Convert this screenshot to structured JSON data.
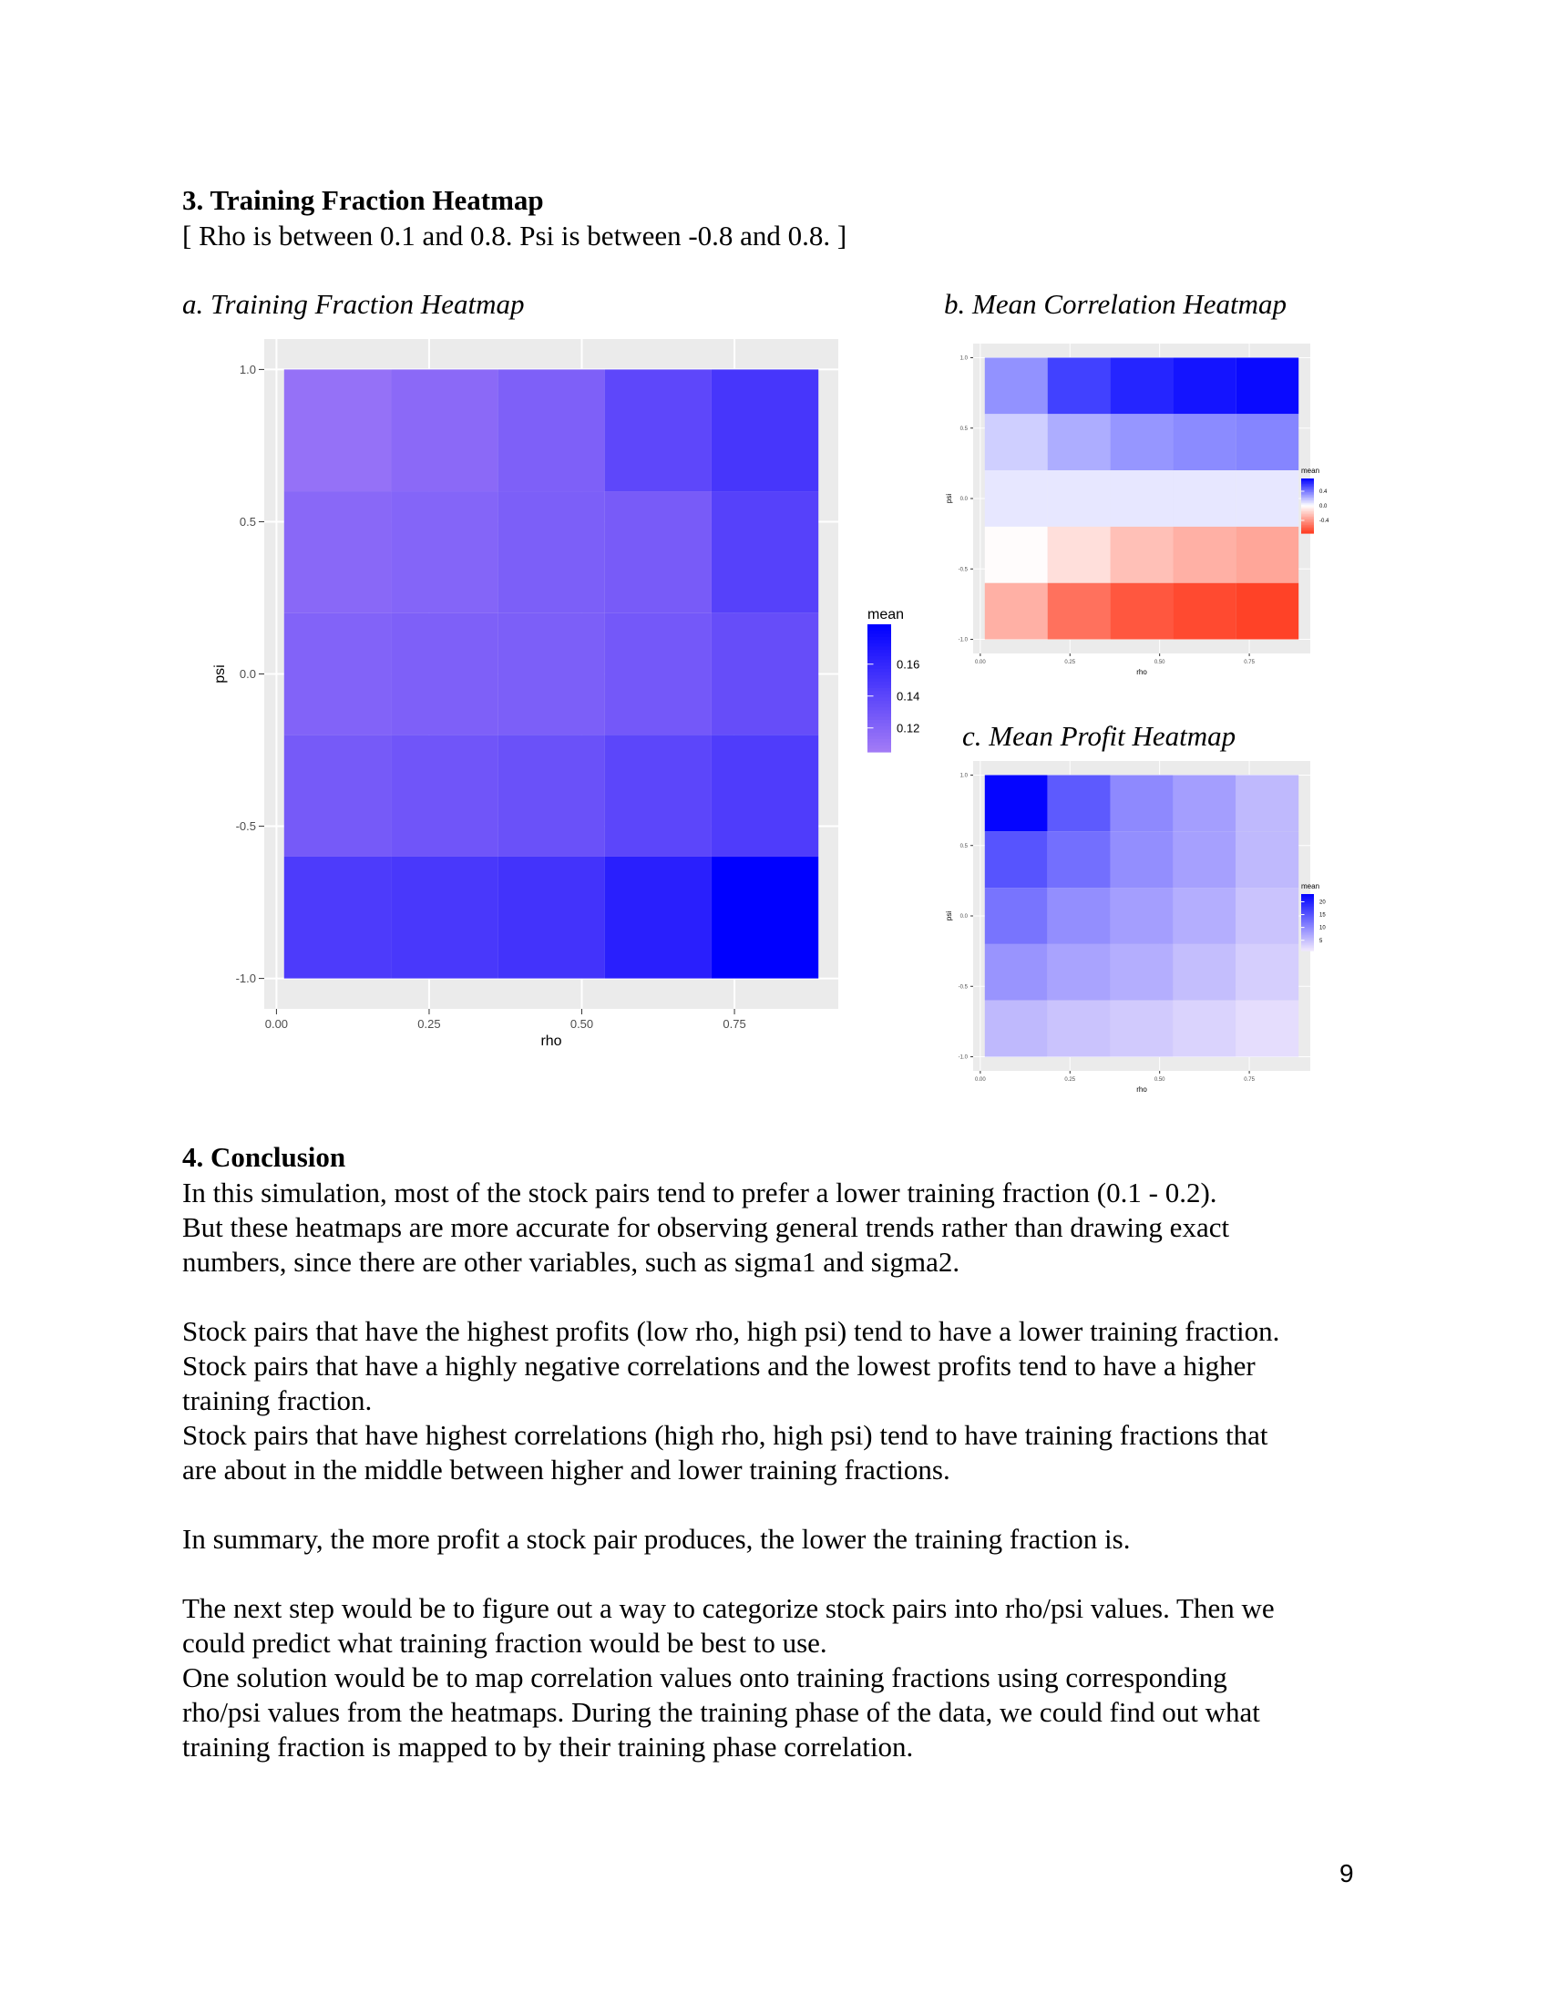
{
  "section3": {
    "heading": "3. Training Fraction Heatmap",
    "subtitle": "[ Rho is between 0.1 and 0.8. Psi is between -0.8 and 0.8. ]"
  },
  "captions": {
    "a": "a. Training Fraction Heatmap",
    "b": "b. Mean Correlation Heatmap",
    "c": "c. Mean Profit Heatmap"
  },
  "chart_data": [
    {
      "id": "a",
      "type": "heatmap",
      "xlabel": "rho",
      "ylabel": "psi",
      "x_ticks": [
        "0.00",
        "0.25",
        "0.50",
        "0.75"
      ],
      "y_ticks": [
        "1.0",
        "0.5",
        "0.0",
        "-0.5",
        "-1.0"
      ],
      "x_centers": [
        0.1,
        0.275,
        0.45,
        0.625,
        0.8
      ],
      "y_centers": [
        0.8,
        0.4,
        0.0,
        -0.4,
        -0.8
      ],
      "x_range": [
        -0.02,
        0.92
      ],
      "y_range": [
        -1.1,
        1.1
      ],
      "legend_title": "mean",
      "legend_ticks": [
        "0.16",
        "0.14",
        "0.12"
      ],
      "legend_values": [
        0.16,
        0.14,
        0.12
      ],
      "legend_range": [
        0.105,
        0.185
      ],
      "low_color": "#a37cf6",
      "high_color": "#0000ff",
      "values": [
        [
          0.112,
          0.117,
          0.123,
          0.139,
          0.15
        ],
        [
          0.118,
          0.12,
          0.124,
          0.126,
          0.143
        ],
        [
          0.121,
          0.123,
          0.124,
          0.128,
          0.135
        ],
        [
          0.127,
          0.13,
          0.133,
          0.14,
          0.146
        ],
        [
          0.147,
          0.149,
          0.152,
          0.165,
          0.185
        ]
      ]
    },
    {
      "id": "b",
      "type": "heatmap",
      "xlabel": "rho",
      "ylabel": "psi",
      "x_ticks": [
        "0.00",
        "0.25",
        "0.50",
        "0.75"
      ],
      "y_ticks": [
        "1.0",
        "0.5",
        "0.0",
        "-0.5",
        "-1.0"
      ],
      "x_centers": [
        0.1,
        0.275,
        0.45,
        0.625,
        0.8
      ],
      "y_centers": [
        0.8,
        0.4,
        0.0,
        -0.4,
        -0.8
      ],
      "x_range": [
        -0.02,
        0.92
      ],
      "y_range": [
        -1.1,
        1.1
      ],
      "legend_title": "mean",
      "legend_ticks": [
        "0.4",
        "0.0",
        "-0.4"
      ],
      "legend_values": [
        0.4,
        0.0,
        -0.4
      ],
      "legend_range": [
        -0.75,
        0.75
      ],
      "colors": {
        "low": "#ff3a1e",
        "mid": "#ffffff",
        "high": "#0000ff"
      },
      "values": [
        [
          0.32,
          0.56,
          0.64,
          0.69,
          0.72
        ],
        [
          0.14,
          0.24,
          0.31,
          0.34,
          0.36
        ],
        [
          0.07,
          0.07,
          0.07,
          0.07,
          0.07
        ],
        [
          -0.01,
          -0.12,
          -0.24,
          -0.3,
          -0.34
        ],
        [
          -0.3,
          -0.54,
          -0.64,
          -0.69,
          -0.72
        ]
      ]
    },
    {
      "id": "c",
      "type": "heatmap",
      "xlabel": "rho",
      "ylabel": "psi",
      "x_ticks": [
        "0.00",
        "0.25",
        "0.50",
        "0.75"
      ],
      "y_ticks": [
        "1.0",
        "0.5",
        "0.0",
        "-0.5",
        "-1.0"
      ],
      "x_centers": [
        0.1,
        0.275,
        0.45,
        0.625,
        0.8
      ],
      "y_centers": [
        0.8,
        0.4,
        0.0,
        -0.4,
        -0.8
      ],
      "x_range": [
        -0.02,
        0.92
      ],
      "y_range": [
        -1.1,
        1.1
      ],
      "legend_title": "mean",
      "legend_ticks": [
        "20",
        "15",
        "10",
        "5"
      ],
      "legend_values": [
        20,
        15,
        10,
        5
      ],
      "legend_range": [
        1,
        23
      ],
      "low_color": "#f0e8fd",
      "high_color": "#0000ff",
      "values": [
        [
          22.5,
          14.5,
          10.0,
          8.0,
          5.5
        ],
        [
          15.0,
          12.5,
          9.5,
          7.8,
          5.5
        ],
        [
          12.0,
          9.5,
          8.0,
          6.5,
          4.5
        ],
        [
          9.0,
          7.5,
          6.5,
          5.0,
          3.5
        ],
        [
          5.5,
          4.5,
          3.8,
          3.0,
          2.0
        ]
      ]
    }
  ],
  "section4": {
    "heading": "4. Conclusion",
    "lines": [
      "In this simulation, most of the stock pairs tend to prefer a lower training fraction (0.1 - 0.2).",
      "But these heatmaps are more accurate for observing general trends rather than drawing exact",
      "numbers, since there are other variables, such as sigma1 and sigma2.",
      "Stock pairs that have the highest profits (low rho, high psi) tend to have a lower training fraction.",
      "Stock pairs that have a highly negative correlations and the lowest profits tend to have a higher",
      "training fraction.",
      "Stock pairs that have highest correlations (high rho, high psi) tend to have training fractions that",
      "are about in the middle between higher and lower training fractions.",
      "In summary, the more profit a stock pair produces, the lower the training fraction is.",
      "The next step would be to figure out a way to categorize stock pairs into rho/psi values. Then we",
      "could predict what training fraction would be best to use.",
      "One solution would be to map correlation values onto training fractions using corresponding",
      "rho/psi values from the heatmaps. During the training phase of the data, we could find out what",
      "training fraction is mapped to by their training phase correlation."
    ]
  },
  "page_number": "9"
}
